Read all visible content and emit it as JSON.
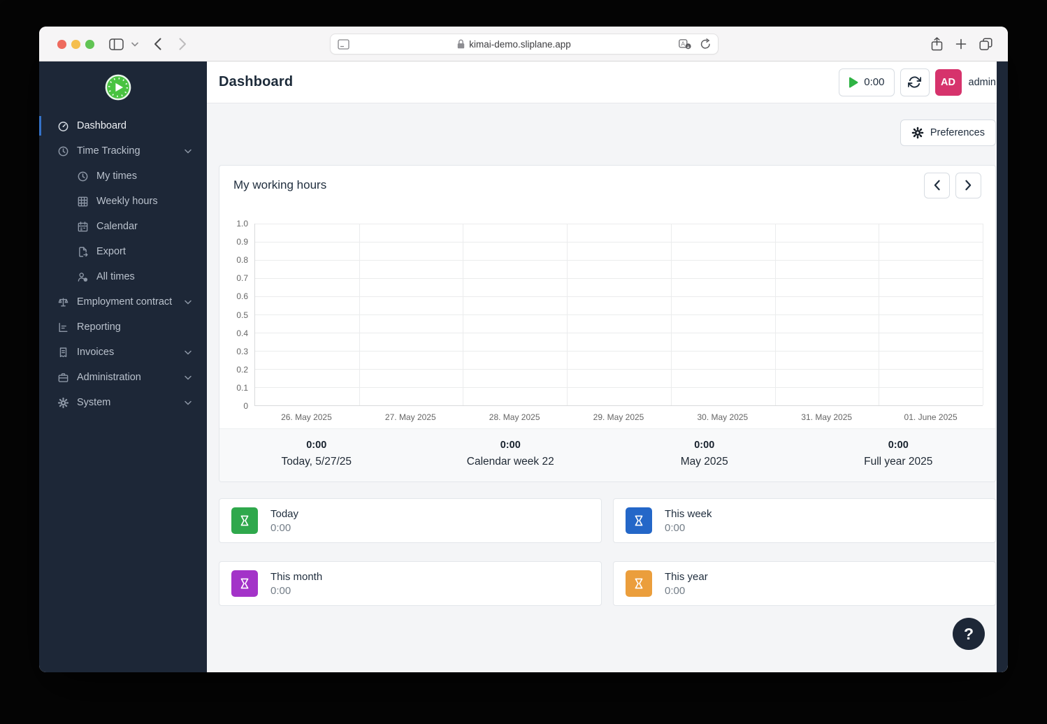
{
  "browser": {
    "url": "kimai-demo.sliplane.app",
    "icons": [
      "traffic-light-close",
      "traffic-light-minimize",
      "traffic-light-zoom",
      "sidebar-toggle",
      "chevron-down",
      "back",
      "forward",
      "page-settings",
      "lock",
      "translate",
      "reload",
      "share",
      "new-tab",
      "tab-overview"
    ]
  },
  "sidebar": {
    "logo_icon": "kimai-logo",
    "items": [
      {
        "label": "Dashboard",
        "icon": "gauge-icon",
        "active": true,
        "indent": false,
        "chevron": false
      },
      {
        "label": "Time Tracking",
        "icon": "clock-icon",
        "active": false,
        "indent": false,
        "chevron": true
      },
      {
        "label": "My times",
        "icon": "clock-icon",
        "active": false,
        "indent": true,
        "chevron": false
      },
      {
        "label": "Weekly hours",
        "icon": "grid-icon",
        "active": false,
        "indent": true,
        "chevron": false
      },
      {
        "label": "Calendar",
        "icon": "calendar-icon",
        "active": false,
        "indent": true,
        "chevron": false
      },
      {
        "label": "Export",
        "icon": "file-export-icon",
        "active": false,
        "indent": true,
        "chevron": false
      },
      {
        "label": "All times",
        "icon": "user-clock-icon",
        "active": false,
        "indent": true,
        "chevron": false
      },
      {
        "label": "Employment contract",
        "icon": "scale-icon",
        "active": false,
        "indent": false,
        "chevron": true
      },
      {
        "label": "Reporting",
        "icon": "report-icon",
        "active": false,
        "indent": false,
        "chevron": false
      },
      {
        "label": "Invoices",
        "icon": "invoice-icon",
        "active": false,
        "indent": false,
        "chevron": true
      },
      {
        "label": "Administration",
        "icon": "briefcase-icon",
        "active": false,
        "indent": false,
        "chevron": true
      },
      {
        "label": "System",
        "icon": "gear-icon",
        "active": false,
        "indent": false,
        "chevron": true
      }
    ]
  },
  "header": {
    "title": "Dashboard",
    "timer_value": "0:00",
    "user_initials": "AD",
    "user_name": "admin"
  },
  "preferences": {
    "label": "Preferences"
  },
  "working_hours": {
    "title": "My working hours",
    "chart_data": {
      "type": "bar",
      "title": "My working hours",
      "categories": [
        "26. May 2025",
        "27. May 2025",
        "28. May 2025",
        "29. May 2025",
        "30. May 2025",
        "31. May 2025",
        "01. June 2025"
      ],
      "values": [
        0,
        0,
        0,
        0,
        0,
        0,
        0
      ],
      "ylim": [
        0,
        1
      ],
      "yticks": [
        "1.0",
        "0.9",
        "0.8",
        "0.7",
        "0.6",
        "0.5",
        "0.4",
        "0.3",
        "0.2",
        "0.1",
        "0"
      ],
      "xlabel": "",
      "ylabel": "",
      "grid": true,
      "legend": "none"
    },
    "summaries": [
      {
        "value": "0:00",
        "label": "Today, 5/27/25"
      },
      {
        "value": "0:00",
        "label": "Calendar week 22"
      },
      {
        "value": "0:00",
        "label": "May 2025"
      },
      {
        "value": "0:00",
        "label": "Full year 2025"
      }
    ]
  },
  "stat_cards": [
    {
      "label": "Today",
      "value": "0:00",
      "icon": "hourglass-icon",
      "color": "#2fa84c"
    },
    {
      "label": "This week",
      "value": "0:00",
      "icon": "hourglass-icon",
      "color": "#2467c8"
    },
    {
      "label": "This month",
      "value": "0:00",
      "icon": "hourglass-icon",
      "color": "#a333c8"
    },
    {
      "label": "This year",
      "value": "0:00",
      "icon": "hourglass-icon",
      "color": "#eb9e3c"
    }
  ],
  "help": {
    "label": "?"
  },
  "colors": {
    "sidebar_bg": "#1d2737",
    "accent_blue": "#3472c8",
    "avatar_pink": "#d6336c",
    "play_green": "#2fb344",
    "content_bg": "#f4f5f7"
  }
}
